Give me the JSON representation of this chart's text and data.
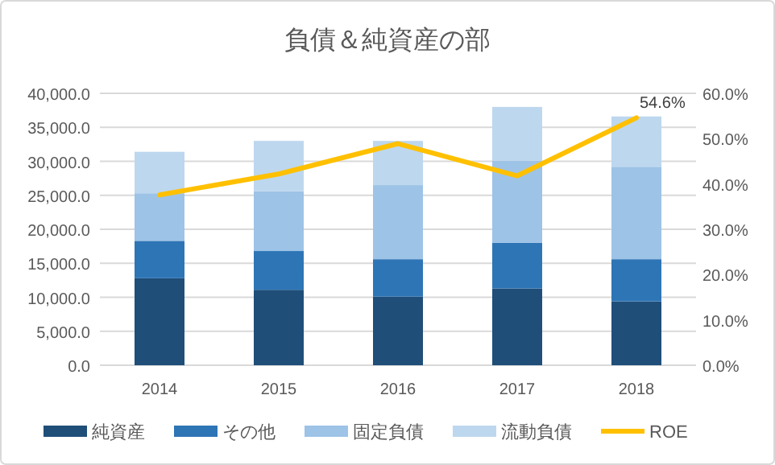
{
  "chart_data": {
    "type": "bar",
    "stacked": true,
    "title": "負債＆純資産の部",
    "categories": [
      "2014",
      "2015",
      "2016",
      "2017",
      "2018"
    ],
    "series": [
      {
        "name": "純資産",
        "color": "#1f4e79",
        "values": [
          12800,
          11100,
          10100,
          11300,
          9400
        ]
      },
      {
        "name": "その他",
        "color": "#2e75b6",
        "values": [
          5500,
          5700,
          5500,
          6700,
          6200
        ]
      },
      {
        "name": "固定負債",
        "color": "#9dc3e6",
        "values": [
          7000,
          8800,
          10900,
          12100,
          13600
        ]
      },
      {
        "name": "流動負債",
        "color": "#bdd7ee",
        "values": [
          6100,
          7400,
          6500,
          7900,
          7400
        ]
      },
      {
        "name": "ROE",
        "type": "line",
        "axis": "y2",
        "color": "#ffc000",
        "values": [
          37.6,
          42.2,
          48.9,
          41.8,
          54.6
        ],
        "value_labels": [
          null,
          null,
          null,
          null,
          "54.6%"
        ]
      }
    ],
    "ylim": [
      0,
      40000
    ],
    "yticks": [
      {
        "value": 0,
        "label": "0.0"
      },
      {
        "value": 5000,
        "label": "5,000.0"
      },
      {
        "value": 10000,
        "label": "10,000.0"
      },
      {
        "value": 15000,
        "label": "15,000.0"
      },
      {
        "value": 20000,
        "label": "20,000.0"
      },
      {
        "value": 25000,
        "label": "25,000.0"
      },
      {
        "value": 30000,
        "label": "30,000.0"
      },
      {
        "value": 35000,
        "label": "35,000.0"
      },
      {
        "value": 40000,
        "label": "40,000.0"
      }
    ],
    "y2lim": [
      0,
      60
    ],
    "y2ticks": [
      {
        "value": 0,
        "label": "0.0%"
      },
      {
        "value": 10,
        "label": "10.0%"
      },
      {
        "value": 20,
        "label": "20.0%"
      },
      {
        "value": 30,
        "label": "30.0%"
      },
      {
        "value": 40,
        "label": "40.0%"
      },
      {
        "value": 50,
        "label": "50.0%"
      },
      {
        "value": 60,
        "label": "60.0%"
      }
    ],
    "grid": "y",
    "legend": "bottom"
  }
}
